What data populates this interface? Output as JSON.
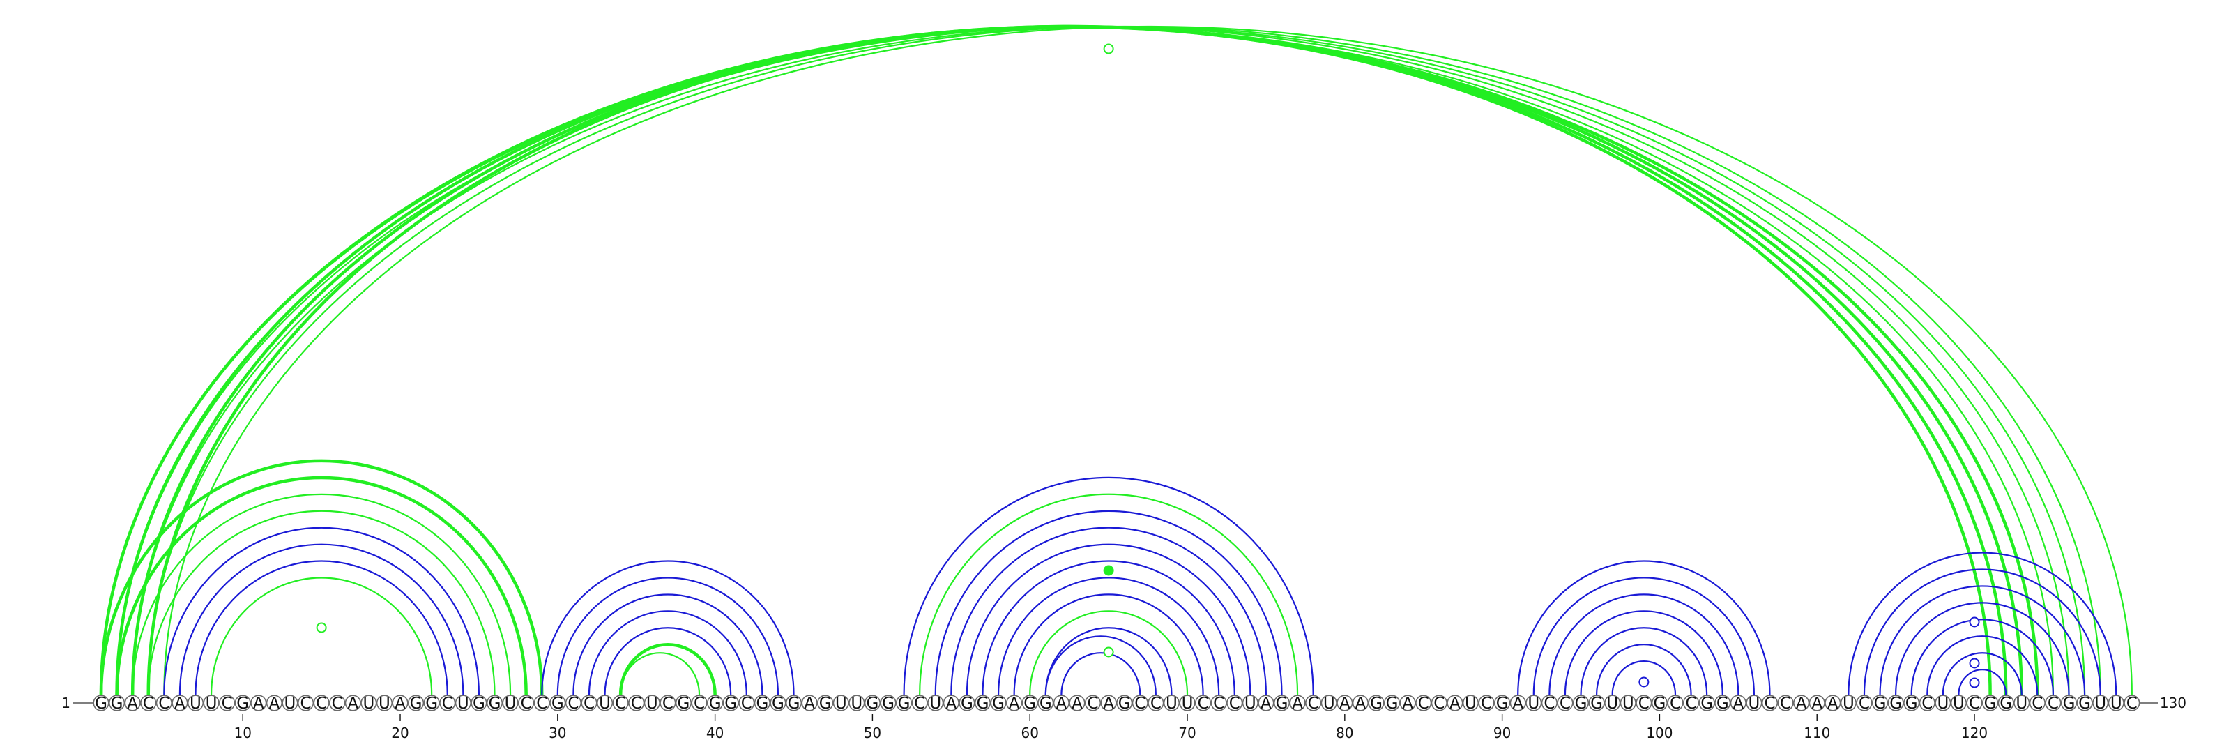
{
  "sequence": "GGACCAUUCGAAUCCCAUUAGGCUGGUCCGCCUCCUCGCGGCGGGAGUUGGGCUAGGGAGGAACAGCCUUCCCUAGACUAAGGACCAUCGAUCCGGUUCGCCGGAUCCAAAUCGGGCUUCGGUCCGGUUC",
  "start_label": "1",
  "end_label": "130",
  "ticks": [
    "10",
    "20",
    "30",
    "40",
    "50",
    "60",
    "70",
    "80",
    "90",
    "100",
    "110",
    "120"
  ],
  "colors": {
    "green": "#22ee22",
    "blue": "#1a1ad6",
    "backbone": "#555555"
  },
  "arcs": [
    {
      "i": 1,
      "j": 124,
      "color": "green",
      "width": 4.5
    },
    {
      "i": 2,
      "j": 123,
      "color": "green",
      "width": 4.5
    },
    {
      "i": 3,
      "j": 122,
      "color": "green",
      "width": 4.5
    },
    {
      "i": 4,
      "j": 121,
      "color": "green",
      "width": 4.5
    },
    {
      "i": 1,
      "j": 125,
      "color": "green",
      "width": 2.2
    },
    {
      "i": 2,
      "j": 126,
      "color": "green",
      "width": 2.2
    },
    {
      "i": 3,
      "j": 127,
      "color": "green",
      "width": 2.2
    },
    {
      "i": 4,
      "j": 128,
      "color": "green",
      "width": 2.2
    },
    {
      "i": 5,
      "j": 130,
      "color": "green",
      "width": 2.2
    },
    {
      "i": 1,
      "j": 29,
      "color": "green",
      "width": 4.5
    },
    {
      "i": 2,
      "j": 28,
      "color": "green",
      "width": 4.5
    },
    {
      "i": 3,
      "j": 27,
      "color": "green",
      "width": 2.2
    },
    {
      "i": 4,
      "j": 26,
      "color": "green",
      "width": 2.2
    },
    {
      "i": 5,
      "j": 25,
      "color": "blue",
      "width": 2.2
    },
    {
      "i": 6,
      "j": 24,
      "color": "blue",
      "width": 2.2
    },
    {
      "i": 7,
      "j": 23,
      "color": "blue",
      "width": 2.2
    },
    {
      "i": 8,
      "j": 22,
      "color": "green",
      "width": 2.2
    },
    {
      "i": 29,
      "j": 45,
      "color": "blue",
      "width": 2.2
    },
    {
      "i": 30,
      "j": 44,
      "color": "blue",
      "width": 2.2
    },
    {
      "i": 31,
      "j": 43,
      "color": "blue",
      "width": 2.2
    },
    {
      "i": 32,
      "j": 42,
      "color": "blue",
      "width": 2.2
    },
    {
      "i": 33,
      "j": 41,
      "color": "blue",
      "width": 2.2
    },
    {
      "i": 34,
      "j": 40,
      "color": "green",
      "width": 4.5
    },
    {
      "i": 34,
      "j": 39,
      "color": "green",
      "width": 2.2
    },
    {
      "i": 52,
      "j": 78,
      "color": "blue",
      "width": 2.2
    },
    {
      "i": 53,
      "j": 77,
      "color": "green",
      "width": 2.2
    },
    {
      "i": 54,
      "j": 76,
      "color": "blue",
      "width": 2.2
    },
    {
      "i": 55,
      "j": 75,
      "color": "blue",
      "width": 2.2
    },
    {
      "i": 56,
      "j": 74,
      "color": "blue",
      "width": 2.2
    },
    {
      "i": 57,
      "j": 73,
      "color": "blue",
      "width": 2.2
    },
    {
      "i": 58,
      "j": 72,
      "color": "blue",
      "width": 2.2
    },
    {
      "i": 59,
      "j": 71,
      "color": "blue",
      "width": 2.2
    },
    {
      "i": 60,
      "j": 70,
      "color": "green",
      "width": 2.2
    },
    {
      "i": 61,
      "j": 69,
      "color": "blue",
      "width": 2.2
    },
    {
      "i": 61,
      "j": 68,
      "color": "blue",
      "width": 2.2
    },
    {
      "i": 62,
      "j": 67,
      "color": "blue",
      "width": 2.2
    },
    {
      "i": 91,
      "j": 107,
      "color": "blue",
      "width": 2.2
    },
    {
      "i": 92,
      "j": 106,
      "color": "blue",
      "width": 2.2
    },
    {
      "i": 93,
      "j": 105,
      "color": "blue",
      "width": 2.2
    },
    {
      "i": 94,
      "j": 104,
      "color": "blue",
      "width": 2.2
    },
    {
      "i": 95,
      "j": 103,
      "color": "blue",
      "width": 2.2
    },
    {
      "i": 96,
      "j": 102,
      "color": "blue",
      "width": 2.2
    },
    {
      "i": 97,
      "j": 101,
      "color": "blue",
      "width": 2.2
    },
    {
      "i": 112,
      "j": 129,
      "color": "blue",
      "width": 2.2
    },
    {
      "i": 113,
      "j": 128,
      "color": "blue",
      "width": 2.2
    },
    {
      "i": 114,
      "j": 127,
      "color": "blue",
      "width": 2.2
    },
    {
      "i": 115,
      "j": 126,
      "color": "blue",
      "width": 2.2
    },
    {
      "i": 116,
      "j": 125,
      "color": "blue",
      "width": 2.2
    },
    {
      "i": 117,
      "j": 124,
      "color": "blue",
      "width": 2.2
    },
    {
      "i": 118,
      "j": 123,
      "color": "blue",
      "width": 2.2
    },
    {
      "i": 119,
      "j": 122,
      "color": "blue",
      "width": 2.2
    }
  ],
  "markers": [
    {
      "pos": 65,
      "h": 0.44,
      "color": "green",
      "filled": false
    },
    {
      "pos": 15,
      "h": 0.7,
      "color": "green",
      "filled": false
    },
    {
      "pos": 65,
      "h": 0.96,
      "color": "green",
      "filled": true
    },
    {
      "pos": 65,
      "h": 0.83,
      "color": "green",
      "filled": false
    },
    {
      "pos": 99,
      "h": 0.55,
      "color": "blue",
      "filled": false
    },
    {
      "pos": 120,
      "h": 0.85,
      "color": "blue",
      "filled": false
    },
    {
      "pos": 120,
      "h": 0.55,
      "color": "blue",
      "filled": false
    },
    {
      "pos": 120,
      "h": 0.8,
      "color": "blue",
      "filled": false
    }
  ]
}
